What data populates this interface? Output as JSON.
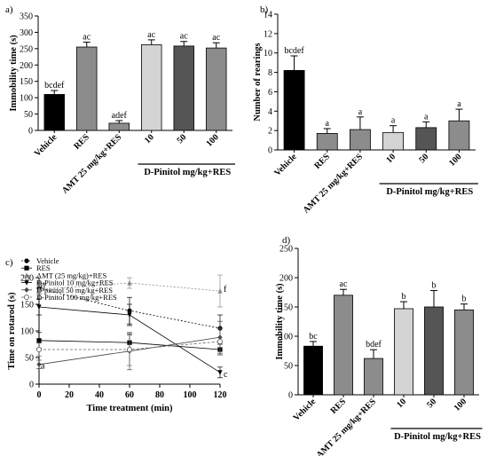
{
  "chart_data": [
    {
      "panel_label": "a)",
      "type": "bar",
      "ylabel": "Immobility time (s)",
      "ylim": [
        0,
        350
      ],
      "yticks": [
        0,
        50,
        100,
        150,
        200,
        250,
        300,
        350
      ],
      "categories": [
        "Vehicle",
        "RES",
        "AMT 25 mg/kg+RES",
        "10",
        "50",
        "100"
      ],
      "values": [
        110,
        255,
        22,
        262,
        258,
        252
      ],
      "errors": [
        12,
        15,
        8,
        15,
        14,
        16
      ],
      "annotations": [
        "bcdef",
        "ac",
        "adef",
        "ac",
        "ac",
        "ac"
      ],
      "colors": [
        "#000000",
        "#8c8c8c",
        "#8c8c8c",
        "#d4d4d4",
        "#555555",
        "#8c8c8c"
      ],
      "group_label": "D-Pinitol mg/kg+RES"
    },
    {
      "panel_label": "b)",
      "type": "bar",
      "ylabel": "Number of rearings",
      "ylim": [
        0,
        14
      ],
      "yticks": [
        0,
        2,
        4,
        6,
        8,
        10,
        12,
        14
      ],
      "categories": [
        "Vehicle",
        "RES",
        "AMT 25 mg/kg+RES",
        "10",
        "50",
        "100"
      ],
      "values": [
        8.2,
        1.7,
        2.1,
        1.8,
        2.3,
        3.0
      ],
      "errors": [
        1.5,
        0.5,
        1.3,
        0.7,
        0.6,
        1.2
      ],
      "annotations": [
        "bcdef",
        "a",
        "a",
        "a",
        "a",
        "a"
      ],
      "colors": [
        "#000000",
        "#8c8c8c",
        "#8c8c8c",
        "#d4d4d4",
        "#555555",
        "#8c8c8c"
      ],
      "group_label": "D-Pinitol mg/kg+RES"
    },
    {
      "panel_label": "c)",
      "type": "line",
      "xlabel": "Time treatment (min)",
      "ylabel": "Time on rotarod (s)",
      "xlim": [
        0,
        120
      ],
      "ylim": [
        0,
        200
      ],
      "xticks": [
        0,
        20,
        40,
        60,
        80,
        100,
        120
      ],
      "yticks": [
        0,
        50,
        100,
        150,
        200
      ],
      "x": [
        0,
        60,
        120
      ],
      "series": [
        {
          "name": "Vehicle",
          "values": [
            180,
            138,
            105
          ],
          "errors": [
            10,
            25,
            25
          ],
          "color": "#000000",
          "marker": "circle",
          "dash": "2,2"
        },
        {
          "name": "RES",
          "values": [
            82,
            78,
            65
          ],
          "errors": [
            15,
            15,
            10
          ],
          "color": "#000000",
          "marker": "square",
          "dash": ""
        },
        {
          "name": "AMT (25 mg/kg)+RES",
          "values": [
            178,
            190,
            175
          ],
          "errors": [
            8,
            10,
            30
          ],
          "color": "#888888",
          "marker": "triangle",
          "dash": "2,2"
        },
        {
          "name": "D-Pinitol 10 mg/kg+RES",
          "values": [
            145,
            130,
            22
          ],
          "errors": [
            15,
            20,
            10
          ],
          "color": "#000000",
          "marker": "triangle-down",
          "dash": ""
        },
        {
          "name": "D-pinitol 50 mg/kg+RES",
          "values": [
            37,
            62,
            88
          ],
          "errors": [
            8,
            35,
            30
          ],
          "color": "#444444",
          "marker": "diamond",
          "dash": ""
        },
        {
          "name": "D-Pinitol 100 mg/kg+RES",
          "values": [
            65,
            65,
            80
          ],
          "errors": [
            12,
            30,
            25
          ],
          "color": "#666666",
          "marker": "open-circle",
          "dash": "3,2"
        }
      ],
      "annotations": [
        {
          "text": "d",
          "x": 0,
          "y": 184
        },
        {
          "text": "a",
          "x": 0,
          "y": 34
        },
        {
          "text": "f",
          "x": 120,
          "y": 178
        },
        {
          "text": "c",
          "x": 120,
          "y": 18
        }
      ]
    },
    {
      "panel_label": "d)",
      "type": "bar",
      "ylabel": "Immobility time (s)",
      "ylim": [
        0,
        250
      ],
      "yticks": [
        0,
        50,
        100,
        150,
        200,
        250
      ],
      "categories": [
        "Vehicle",
        "RES",
        "AMT 25 mg/kg+RES",
        "10",
        "50",
        "100"
      ],
      "values": [
        83,
        170,
        62,
        147,
        150,
        145
      ],
      "errors": [
        8,
        10,
        15,
        12,
        28,
        10
      ],
      "annotations": [
        "bc",
        "ac",
        "bdef",
        "b",
        "b",
        "b"
      ],
      "colors": [
        "#000000",
        "#8c8c8c",
        "#8c8c8c",
        "#d4d4d4",
        "#555555",
        "#8c8c8c"
      ],
      "group_label": "D-Pinitol mg/kg+RES"
    }
  ]
}
